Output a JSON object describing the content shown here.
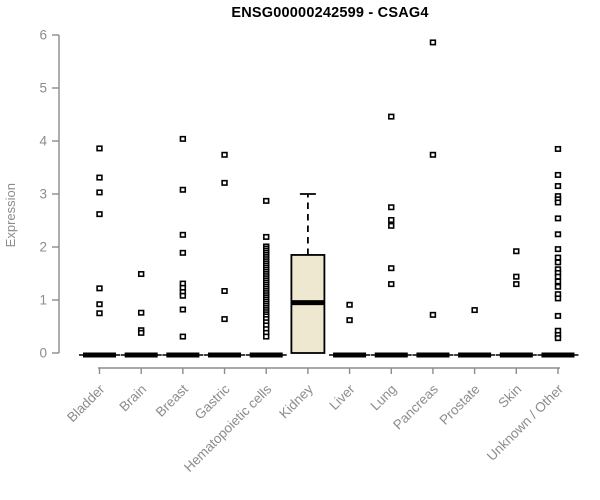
{
  "title": "ENSG00000242599 - CSAG4",
  "chart_data": {
    "type": "boxplot",
    "title": "ENSG00000242599 - CSAG4",
    "xlabel": "",
    "ylabel": "Expression",
    "ylim": [
      0,
      6
    ],
    "yticks": [
      0,
      1,
      2,
      3,
      4,
      5,
      6
    ],
    "grid": false,
    "legend": null,
    "categories": [
      "Bladder",
      "Brain",
      "Breast",
      "Gastric",
      "Hematopoietic cells",
      "Kidney",
      "Liver",
      "Lung",
      "Pancreas",
      "Prostate",
      "Skin",
      "Unknown / Other"
    ],
    "groups": [
      {
        "label": "Bladder",
        "box": {
          "min": 0,
          "q1": 0,
          "median": 0,
          "q3": 0,
          "max": 0
        },
        "outliers": [
          3.86,
          3.31,
          3.03,
          2.62,
          1.22,
          0.92,
          0.75
        ]
      },
      {
        "label": "Brain",
        "box": {
          "min": 0,
          "q1": 0,
          "median": 0,
          "q3": 0,
          "max": 0
        },
        "outliers": [
          1.49,
          0.76,
          0.43,
          0.38
        ]
      },
      {
        "label": "Breast",
        "box": {
          "min": 0,
          "q1": 0,
          "median": 0,
          "q3": 0,
          "max": 0
        },
        "outliers": [
          4.04,
          3.08,
          2.23,
          1.89,
          1.31,
          1.23,
          1.15,
          1.08,
          0.82,
          0.31
        ]
      },
      {
        "label": "Gastric",
        "box": {
          "min": 0,
          "q1": 0,
          "median": 0,
          "q3": 0,
          "max": 0
        },
        "outliers": [
          3.74,
          3.21,
          1.17,
          0.64
        ]
      },
      {
        "label": "Hematopoietic cells",
        "box": {
          "min": 0,
          "q1": 0,
          "median": 0,
          "q3": 0,
          "max": 0
        },
        "outliers": [
          2.87,
          2.19,
          2.01,
          1.97,
          1.93,
          1.89,
          1.85,
          1.81,
          1.77,
          1.73,
          1.69,
          1.65,
          1.61,
          1.57,
          1.53,
          1.49,
          1.45,
          1.41,
          1.37,
          1.33,
          1.29,
          1.25,
          1.21,
          1.17,
          1.13,
          1.09,
          1.05,
          1.01,
          0.97,
          0.93,
          0.89,
          0.85,
          0.81,
          0.77,
          0.73,
          0.69,
          0.64,
          0.58,
          0.52,
          0.45,
          0.38,
          0.31
        ]
      },
      {
        "label": "Kidney",
        "box": {
          "min": 0,
          "q1": 0,
          "median": 0.95,
          "q3": 1.85,
          "max": 3.0
        },
        "outliers": []
      },
      {
        "label": "Liver",
        "box": {
          "min": 0,
          "q1": 0,
          "median": 0,
          "q3": 0,
          "max": 0
        },
        "outliers": [
          0.91,
          0.62
        ]
      },
      {
        "label": "Lung",
        "box": {
          "min": 0,
          "q1": 0,
          "median": 0,
          "q3": 0,
          "max": 0
        },
        "outliers": [
          4.46,
          2.75,
          2.51,
          2.4,
          1.6,
          1.3
        ]
      },
      {
        "label": "Pancreas",
        "box": {
          "min": 0,
          "q1": 0,
          "median": 0,
          "q3": 0,
          "max": 0
        },
        "outliers": [
          5.86,
          3.74,
          0.72
        ]
      },
      {
        "label": "Prostate",
        "box": {
          "min": 0,
          "q1": 0,
          "median": 0,
          "q3": 0,
          "max": 0
        },
        "outliers": [
          0.81
        ]
      },
      {
        "label": "Skin",
        "box": {
          "min": 0,
          "q1": 0,
          "median": 0,
          "q3": 0,
          "max": 0
        },
        "outliers": [
          1.92,
          1.44,
          1.3
        ]
      },
      {
        "label": "Unknown / Other",
        "box": {
          "min": 0,
          "q1": 0,
          "median": 0,
          "q3": 0,
          "max": 0
        },
        "outliers": [
          3.85,
          3.36,
          3.15,
          2.96,
          2.9,
          2.84,
          2.54,
          2.24,
          1.96,
          1.8,
          1.71,
          1.58,
          1.51,
          1.44,
          1.35,
          1.25,
          1.11,
          1.03,
          0.7,
          0.42,
          0.34,
          0.28
        ]
      }
    ],
    "colors": {
      "box_fill": "#EDE8CF",
      "box_border": "#000000",
      "median": "#000000",
      "point_stroke": "#000000",
      "point_fill": "#ffffff",
      "axis": "#8C8C8C",
      "tick_text": "#8C8C8C",
      "title_text": "#000000",
      "background": "#ffffff"
    }
  }
}
